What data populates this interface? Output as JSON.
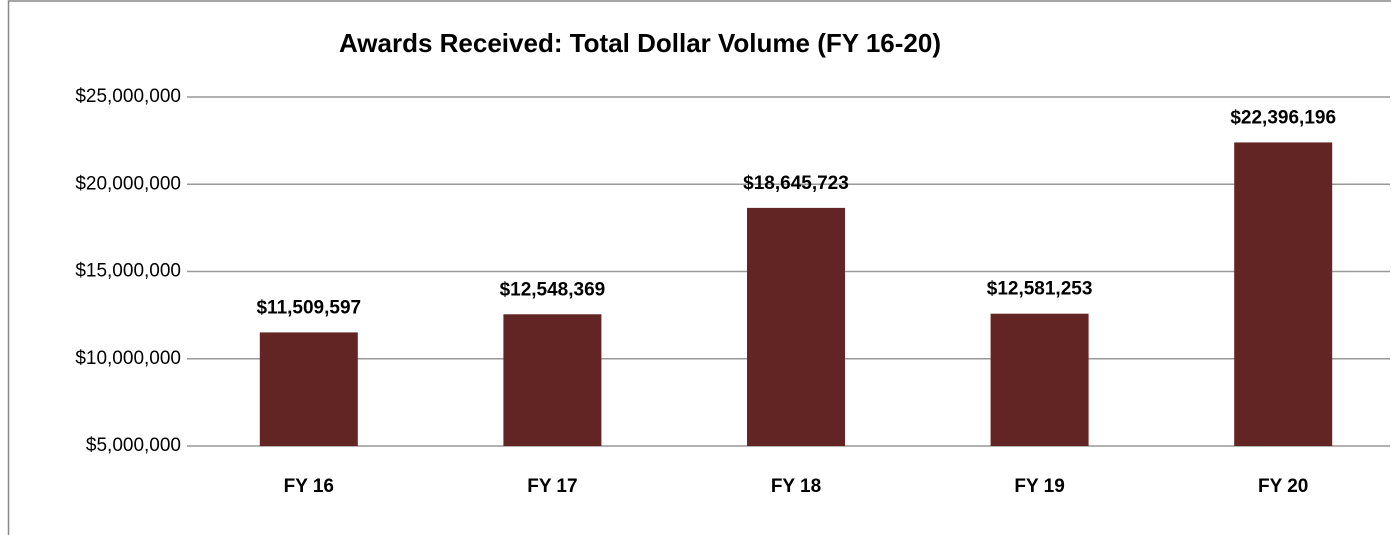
{
  "chart_data": {
    "type": "bar",
    "title": "Awards Received: Total Dollar Volume (FY 16-20)",
    "categories": [
      "FY 16",
      "FY 17",
      "FY 18",
      "FY 19",
      "FY 20"
    ],
    "values": [
      11509597,
      12548369,
      18645723,
      12581253,
      22396196
    ],
    "value_labels": [
      "$11,509,597",
      "$12,548,369",
      "$18,645,723",
      "$12,581,253",
      "$22,396,196"
    ],
    "color": "#632523",
    "ylim": [
      5000000,
      25000000
    ],
    "yticks": [
      {
        "value": 5000000,
        "label": "$5,000,000"
      },
      {
        "value": 10000000,
        "label": "$10,000,000"
      },
      {
        "value": 15000000,
        "label": "$15,000,000"
      },
      {
        "value": 20000000,
        "label": "$20,000,000"
      },
      {
        "value": 25000000,
        "label": "$25,000,000"
      }
    ],
    "grid": true
  }
}
